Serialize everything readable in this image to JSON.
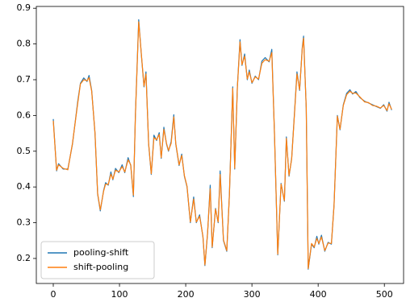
{
  "chart_data": {
    "type": "line",
    "x": [
      0,
      5,
      8,
      15,
      22,
      29,
      37,
      41,
      46,
      51,
      54,
      58,
      63,
      67,
      71,
      76,
      79,
      83,
      87,
      90,
      94,
      99,
      104,
      108,
      113,
      117,
      121,
      124,
      129,
      133,
      137,
      140,
      144,
      148,
      152,
      156,
      160,
      163,
      167,
      171,
      174,
      178,
      182,
      185,
      190,
      194,
      198,
      202,
      207,
      212,
      216,
      221,
      226,
      229,
      233,
      237,
      240,
      245,
      249,
      252,
      257,
      262,
      266,
      271,
      274,
      278,
      282,
      285,
      289,
      293,
      296,
      300,
      305,
      310,
      315,
      320,
      326,
      330,
      334,
      339,
      344,
      349,
      352,
      356,
      360,
      365,
      368,
      372,
      376,
      378,
      382,
      385,
      390,
      394,
      398,
      401,
      405,
      410,
      415,
      420,
      424,
      429,
      433,
      438,
      443,
      448,
      452,
      457,
      463,
      470,
      476,
      482,
      488,
      494,
      499,
      504,
      507,
      511
    ],
    "series": [
      {
        "name": "pooling-shift",
        "color": "#1f77b4",
        "values": [
          0.59,
          0.445,
          0.465,
          0.45,
          0.45,
          0.52,
          0.64,
          0.69,
          0.705,
          0.695,
          0.712,
          0.67,
          0.55,
          0.38,
          0.333,
          0.39,
          0.412,
          0.405,
          0.442,
          0.42,
          0.452,
          0.44,
          0.462,
          0.44,
          0.482,
          0.46,
          0.373,
          0.6,
          0.868,
          0.77,
          0.68,
          0.722,
          0.52,
          0.435,
          0.545,
          0.53,
          0.552,
          0.48,
          0.567,
          0.52,
          0.5,
          0.527,
          0.602,
          0.52,
          0.46,
          0.492,
          0.43,
          0.4,
          0.3,
          0.372,
          0.3,
          0.322,
          0.26,
          0.18,
          0.27,
          0.405,
          0.23,
          0.34,
          0.3,
          0.445,
          0.25,
          0.22,
          0.38,
          0.68,
          0.45,
          0.68,
          0.812,
          0.74,
          0.772,
          0.7,
          0.727,
          0.69,
          0.71,
          0.7,
          0.752,
          0.762,
          0.75,
          0.785,
          0.55,
          0.21,
          0.41,
          0.36,
          0.54,
          0.43,
          0.48,
          0.63,
          0.722,
          0.67,
          0.79,
          0.822,
          0.62,
          0.17,
          0.24,
          0.23,
          0.262,
          0.24,
          0.265,
          0.22,
          0.245,
          0.24,
          0.35,
          0.6,
          0.56,
          0.63,
          0.662,
          0.672,
          0.66,
          0.667,
          0.65,
          0.64,
          0.635,
          0.63,
          0.625,
          0.62,
          0.63,
          0.612,
          0.637,
          0.615
        ]
      },
      {
        "name": "shift-pooling",
        "color": "#ff7f0e",
        "values": [
          0.585,
          0.447,
          0.462,
          0.452,
          0.448,
          0.522,
          0.635,
          0.688,
          0.7,
          0.697,
          0.706,
          0.668,
          0.552,
          0.382,
          0.336,
          0.388,
          0.408,
          0.407,
          0.436,
          0.422,
          0.447,
          0.442,
          0.457,
          0.442,
          0.476,
          0.462,
          0.377,
          0.598,
          0.862,
          0.772,
          0.682,
          0.716,
          0.522,
          0.437,
          0.538,
          0.532,
          0.547,
          0.482,
          0.561,
          0.522,
          0.502,
          0.522,
          0.596,
          0.522,
          0.462,
          0.488,
          0.432,
          0.402,
          0.302,
          0.366,
          0.302,
          0.318,
          0.262,
          0.182,
          0.272,
          0.395,
          0.232,
          0.338,
          0.302,
          0.435,
          0.252,
          0.222,
          0.378,
          0.676,
          0.452,
          0.678,
          0.806,
          0.742,
          0.766,
          0.702,
          0.722,
          0.692,
          0.708,
          0.702,
          0.746,
          0.756,
          0.752,
          0.776,
          0.552,
          0.212,
          0.408,
          0.362,
          0.536,
          0.432,
          0.478,
          0.626,
          0.716,
          0.672,
          0.786,
          0.816,
          0.622,
          0.172,
          0.242,
          0.232,
          0.256,
          0.242,
          0.26,
          0.222,
          0.243,
          0.242,
          0.348,
          0.598,
          0.562,
          0.628,
          0.658,
          0.668,
          0.662,
          0.663,
          0.652,
          0.638,
          0.636,
          0.628,
          0.626,
          0.621,
          0.628,
          0.614,
          0.633,
          0.617
        ]
      }
    ],
    "xlim": [
      -25.6,
      529
    ],
    "ylim": [
      0.13,
      0.905
    ],
    "xticks": [
      0,
      100,
      200,
      300,
      400,
      500
    ],
    "yticks": [
      0.2,
      0.3,
      0.4,
      0.5,
      0.6,
      0.7,
      0.8,
      0.9
    ],
    "legend": "lower left"
  }
}
